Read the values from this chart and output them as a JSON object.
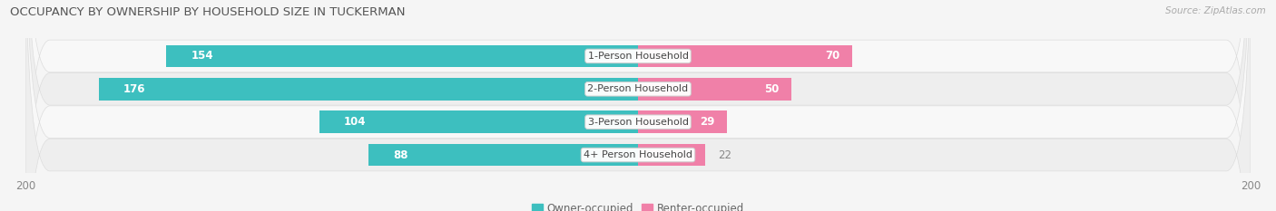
{
  "title": "OCCUPANCY BY OWNERSHIP BY HOUSEHOLD SIZE IN TUCKERMAN",
  "source": "Source: ZipAtlas.com",
  "categories": [
    "1-Person Household",
    "2-Person Household",
    "3-Person Household",
    "4+ Person Household"
  ],
  "owner_values": [
    154,
    176,
    104,
    88
  ],
  "renter_values": [
    70,
    50,
    29,
    22
  ],
  "owner_color": "#3DBFBF",
  "renter_color": "#F080A8",
  "axis_max": 200,
  "bar_height": 0.68,
  "row_colors": [
    "#f0f0f0",
    "#e8e8e8",
    "#f0f0f0",
    "#e8e8e8"
  ],
  "legend_owner": "Owner-occupied",
  "legend_renter": "Renter-occupied",
  "title_fontsize": 9.5,
  "label_fontsize": 8.5,
  "category_fontsize": 8,
  "axis_label_fontsize": 8.5,
  "inside_label_threshold": 25,
  "bg_color": "#f5f5f5"
}
